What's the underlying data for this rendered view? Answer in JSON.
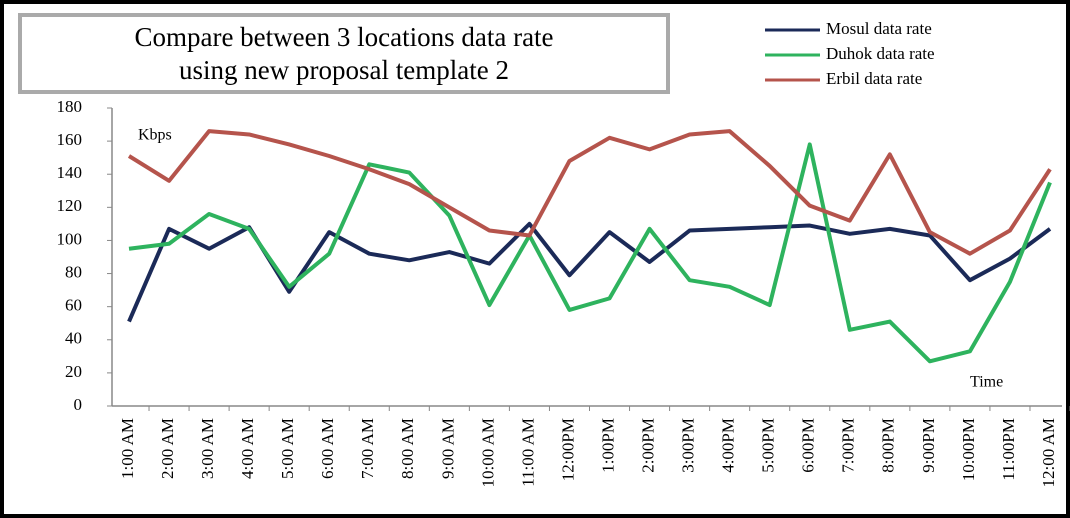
{
  "chart_data": {
    "type": "line",
    "title": "Compare between 3 locations data rate using new proposal template 2",
    "title_lines": [
      "Compare between 3 locations data rate",
      "using new proposal template 2"
    ],
    "y_label": "Kbps",
    "x_label": "Time",
    "categories": [
      "1:00 AM",
      "2:00 AM",
      "3:00 AM",
      "4:00 AM",
      "5:00 AM",
      "6:00 AM",
      "7:00 AM",
      "8:00 AM",
      "9:00 AM",
      "10:00 AM",
      "11:00 AM",
      "12:00PM",
      "1:00PM",
      "2:00PM",
      "3:00PM",
      "4:00PM",
      "5:00PM",
      "6:00PM",
      "7:00PM",
      "8:00PM",
      "9:00PM",
      "10:00PM",
      "11:00PM",
      "12:00 AM"
    ],
    "series": [
      {
        "name": "Mosul data rate",
        "color": "#1b2a58",
        "values": [
          51,
          107,
          95,
          108,
          69,
          105,
          92,
          88,
          93,
          86,
          110,
          79,
          105,
          87,
          106,
          107,
          108,
          109,
          104,
          107,
          103,
          76,
          89,
          107
        ]
      },
      {
        "name": "Duhok data rate",
        "color": "#2eb35e",
        "values": [
          95,
          98,
          116,
          107,
          72,
          92,
          146,
          141,
          115,
          61,
          103,
          58,
          65,
          107,
          76,
          72,
          61,
          158,
          46,
          51,
          27,
          33,
          75,
          135
        ]
      },
      {
        "name": "Erbil data rate",
        "color": "#b5544c",
        "values": [
          151,
          136,
          166,
          164,
          158,
          151,
          143,
          134,
          120,
          106,
          103,
          148,
          162,
          155,
          164,
          166,
          145,
          121,
          112,
          152,
          105,
          92,
          106,
          143
        ]
      }
    ],
    "ylim": [
      0,
      180
    ],
    "yticks": [
      0,
      20,
      40,
      60,
      80,
      100,
      120,
      140,
      160,
      180
    ],
    "grid": false
  }
}
